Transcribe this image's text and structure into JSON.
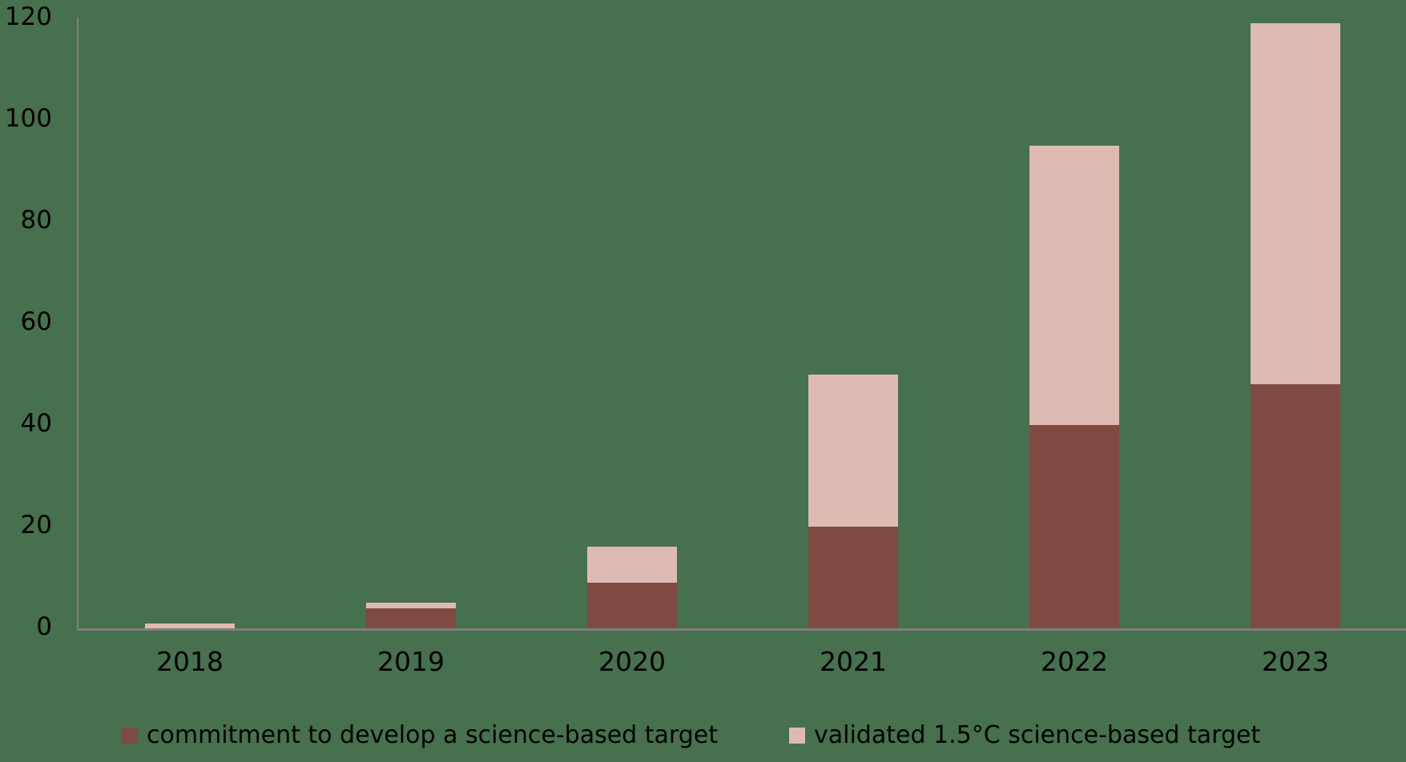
{
  "background_color": "#47704E",
  "chart_data": {
    "type": "bar",
    "stacked": true,
    "title": "",
    "xlabel": "",
    "ylabel": "",
    "categories": [
      "2018",
      "2019",
      "2020",
      "2021",
      "2022",
      "2023"
    ],
    "series": [
      {
        "name": "commitment to develop a science-based target",
        "color": "#7E4A42",
        "values": [
          0,
          4,
          9,
          20,
          40,
          48
        ]
      },
      {
        "name": "validated 1.5°C science-based target",
        "color": "#DEBBB2",
        "values": [
          1,
          1,
          7,
          30,
          55,
          71
        ]
      }
    ],
    "totals": [
      1,
      5,
      16,
      50,
      95,
      119
    ],
    "ylim": [
      0,
      120
    ],
    "yticks": [
      0,
      20,
      40,
      60,
      80,
      100,
      120
    ],
    "grid": false,
    "legend_position": "bottom",
    "axis_color": "#7F7F7F",
    "text_color": "#000000"
  }
}
